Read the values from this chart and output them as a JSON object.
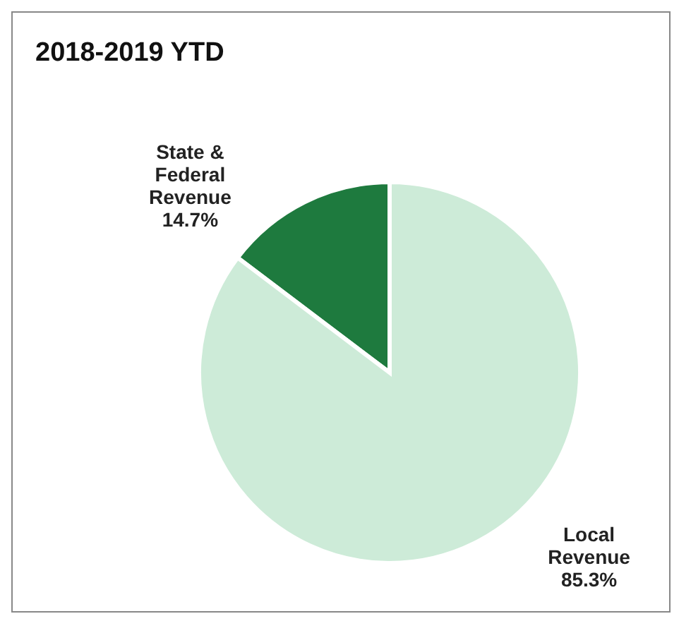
{
  "chart_data": {
    "type": "pie",
    "title": "2018-2019 YTD",
    "categories": [
      "State & Federal Revenue",
      "Local Revenue"
    ],
    "values": [
      14.7,
      85.3
    ],
    "colors": [
      "#1e7a3e",
      "#cdebd8"
    ],
    "value_labels": [
      "14.7%",
      "85.3%"
    ]
  }
}
